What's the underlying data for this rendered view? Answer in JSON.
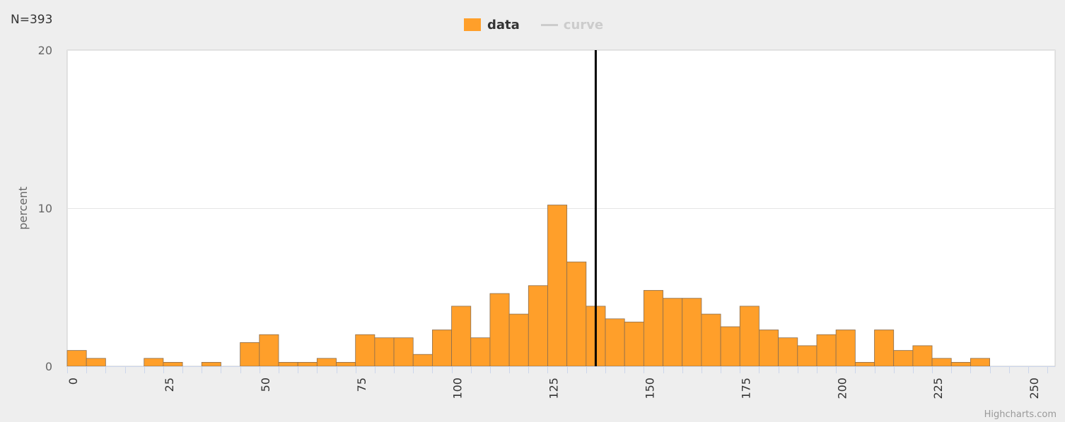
{
  "sample_size_label": "N=393",
  "credit": "Highcharts.com",
  "colors": {
    "bar_fill": "#ff9f2a",
    "bar_stroke": "#8a6e50",
    "curve_hidden": "#cccccc",
    "marker_line": "#000000",
    "legend_text": "#333333",
    "grid": "#e6e6e6",
    "plot_background": "#ffffff",
    "page_background": "#eeeeee"
  },
  "legend": [
    {
      "label": "data",
      "kind": "box",
      "visible": true
    },
    {
      "label": "curve",
      "kind": "line",
      "visible": false
    }
  ],
  "chart_data": {
    "type": "bar",
    "subtype": "histogram",
    "title": "",
    "xlabel": "",
    "ylabel": "percent",
    "xlim": [
      -1.5,
      255.5
    ],
    "ylim": [
      0,
      20
    ],
    "x_ticks": [
      0,
      25,
      50,
      75,
      100,
      125,
      150,
      175,
      200,
      225,
      250
    ],
    "y_ticks": [
      0,
      10,
      20
    ],
    "bin_width": 5,
    "bins_start": [
      -1.5,
      3.5,
      8.5,
      13.5,
      18.5,
      23.5,
      28.5,
      33.5,
      38.5,
      43.5,
      48.5,
      53.5,
      58.5,
      63.5,
      68.5,
      73.5,
      78.5,
      83.5,
      88.5,
      93.5,
      98.5,
      103.5,
      108.5,
      113.5,
      118.5,
      123.5,
      128.5,
      133.5,
      138.5,
      143.5,
      148.5,
      153.5,
      158.5,
      163.5,
      168.5,
      173.5,
      178.5,
      183.5,
      188.5,
      193.5,
      198.5,
      203.5,
      208.5,
      213.5,
      218.5,
      223.5,
      228.5,
      233.5,
      238.5,
      243.5,
      248.5
    ],
    "values": [
      1.0,
      0.5,
      0,
      0,
      0.5,
      0.25,
      0,
      0.25,
      0,
      1.5,
      2.0,
      0.25,
      0.25,
      0.5,
      0.25,
      2.0,
      1.8,
      1.8,
      0.75,
      2.3,
      3.8,
      1.8,
      4.6,
      3.3,
      5.1,
      10.2,
      6.6,
      3.8,
      3.0,
      2.8,
      4.8,
      4.3,
      4.3,
      3.3,
      2.5,
      3.8,
      2.3,
      1.8,
      1.3,
      2.0,
      2.3,
      0.25,
      2.3,
      1.0,
      1.3,
      0.5,
      0.25,
      0.5,
      0,
      0,
      0
    ],
    "marker_line_x": 136,
    "grid": {
      "y": true,
      "x": false
    },
    "legend_position": "top-center"
  }
}
